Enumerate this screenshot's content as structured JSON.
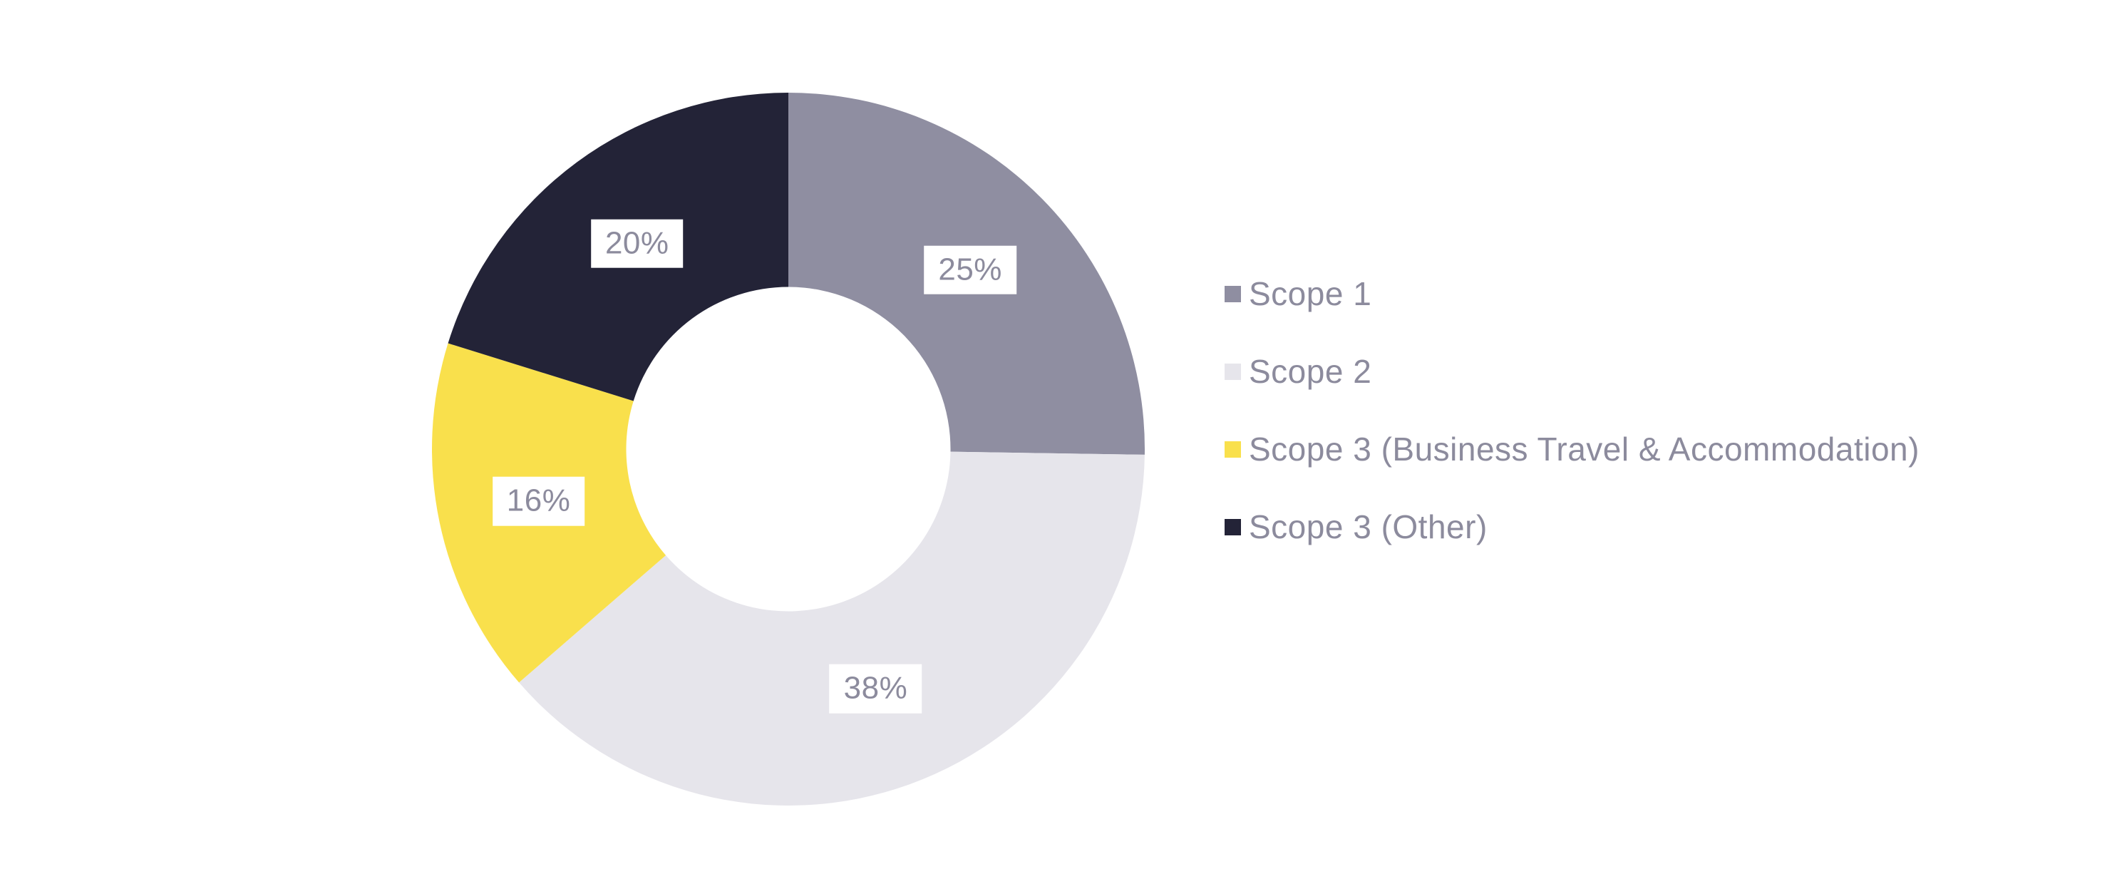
{
  "chart_data": {
    "type": "pie",
    "subtype": "donut",
    "title": "",
    "start_angle_deg": 0,
    "direction": "clockwise",
    "inner_radius_ratio": 0.455,
    "legend_position": "right",
    "background_color": "#ffffff",
    "label_style": {
      "text_color": "#8c8b9d",
      "background_color": "#ffffff",
      "format": "percent"
    },
    "slices": [
      {
        "label": "Scope 1",
        "value": 25,
        "display": "25%",
        "color": "#8f8ea1"
      },
      {
        "label": "Scope 2",
        "value": 38,
        "display": "38%",
        "color": "#e6e5eb"
      },
      {
        "label": "Scope 3 (Business Travel & Accommodation)",
        "value": 16,
        "display": "16%",
        "color": "#f9e04c"
      },
      {
        "label": "Scope 3 (Other)",
        "value": 20,
        "display": "20%",
        "color": "#232337"
      }
    ]
  }
}
